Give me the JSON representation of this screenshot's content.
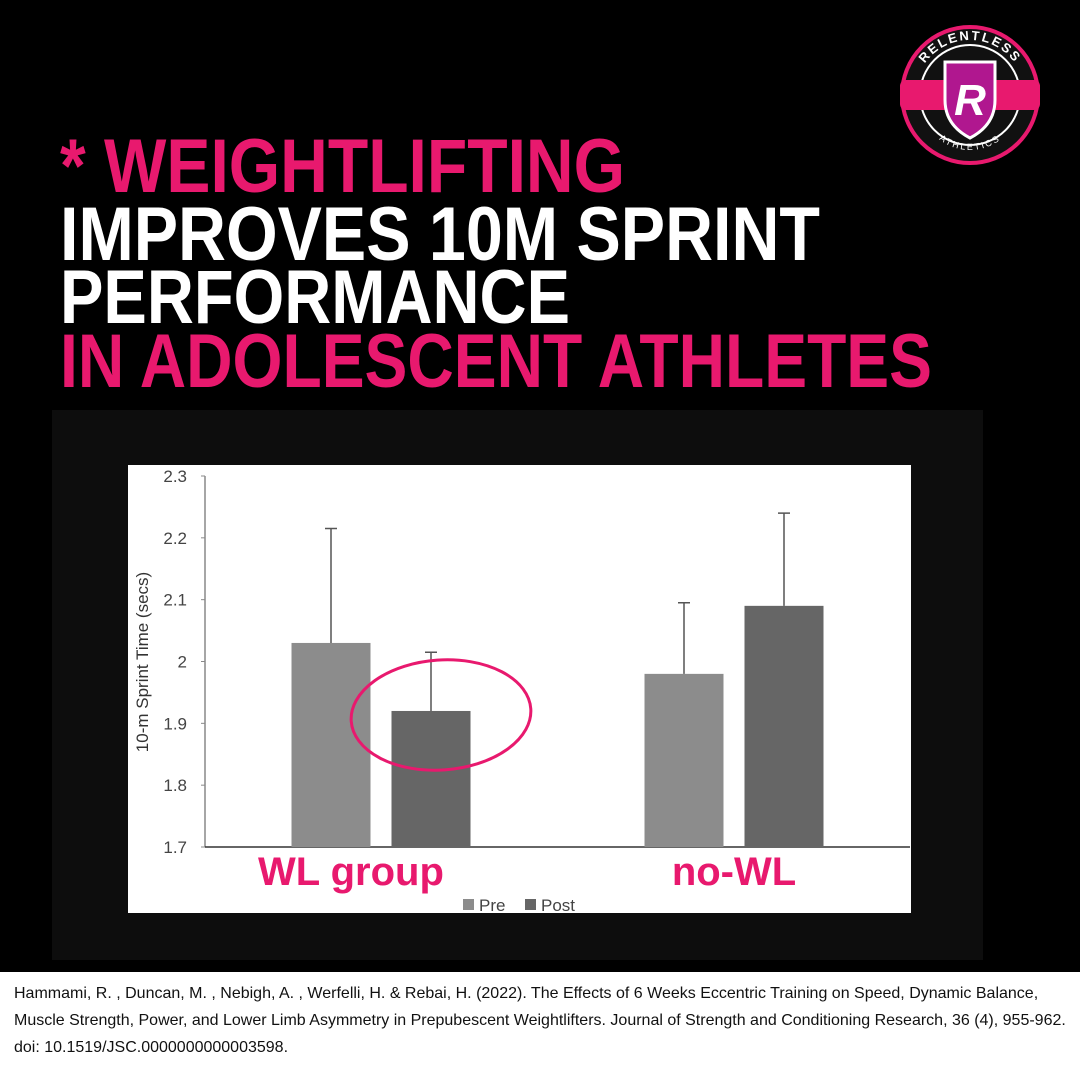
{
  "headline": [
    "* WEIGHTLIFTING",
    "IMPROVES 10M SPRINT",
    "PERFORMANCE",
    "IN ADOLESCENT ATHLETES"
  ],
  "logo": {
    "letter": "R",
    "top": "RELENTLESS",
    "bottom": "ATHLETICS"
  },
  "citation": "Hammami, R. , Duncan, M. , Nebigh, A. , Werfelli, H. & Rebai, H. (2022). The Effects of 6 Weeks Eccentric Training on Speed, Dynamic Balance, Muscle Strength, Power, and Lower Limb Asymmetry in Prepubescent Weightlifters. Journal of Strength and Conditioning Research, 36 (4), 955-962. doi: 10.1519/JSC.0000000000003598.",
  "chart_data": {
    "type": "bar",
    "ylabel": "10-m Sprint Time (secs)",
    "categories": [
      "WL group",
      "no-WL"
    ],
    "series": [
      {
        "name": "Pre",
        "color": "#8c8c8c",
        "values": [
          2.03,
          1.98
        ],
        "errors": [
          0.185,
          0.115
        ]
      },
      {
        "name": "Post",
        "color": "#666666",
        "values": [
          1.92,
          2.09
        ],
        "errors": [
          0.095,
          0.15
        ]
      }
    ],
    "ylim": [
      1.7,
      2.3
    ],
    "yticks": [
      1.7,
      1.8,
      1.9,
      2,
      2.1,
      2.2,
      2.3
    ],
    "grid": false,
    "legend": "bottom",
    "annotation_color": "#e8196e"
  }
}
